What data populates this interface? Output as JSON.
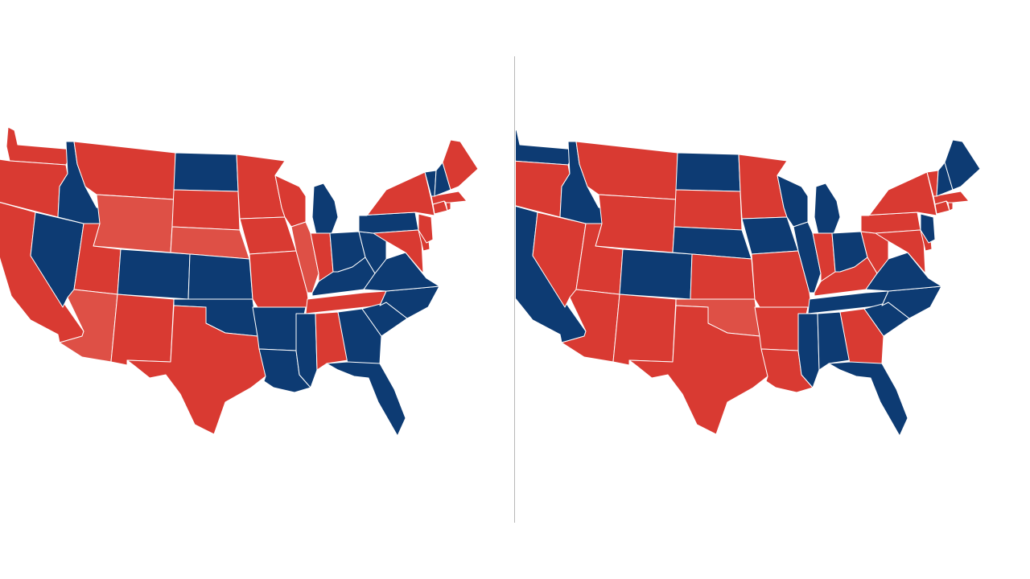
{
  "colors": {
    "red": "#d93a32",
    "light_red": "#de5046",
    "blue": "#0d3b73",
    "divider": "#b8b8b8",
    "background": "#ffffff"
  },
  "maps": [
    {
      "name": "left-map",
      "states": {
        "WA": "red",
        "OR": "red",
        "CA": "red",
        "NV": "blue",
        "ID": "blue",
        "MT": "red",
        "WY": "light_red",
        "UT": "red",
        "AZ": "light_red",
        "CO": "blue",
        "NM": "red",
        "ND": "blue",
        "SD": "red",
        "NE": "light_red",
        "KS": "blue",
        "OK": "blue",
        "TX": "red",
        "MN": "red",
        "IA": "red",
        "MO": "red",
        "AR": "blue",
        "LA": "blue",
        "WI": "red",
        "IL": "light_red",
        "MI": "blue",
        "IN": "red",
        "OH": "blue",
        "KY": "blue",
        "TN": "red",
        "MS": "blue",
        "AL": "red",
        "GA": "blue",
        "FL": "blue",
        "SC": "blue",
        "NC": "blue",
        "VA": "blue",
        "WV": "blue",
        "PA": "blue",
        "NY": "red",
        "MD": "red",
        "DE": "red",
        "NJ": "red",
        "CT": "red",
        "RI": "red",
        "MA": "red",
        "VT": "blue",
        "NH": "blue",
        "ME": "red"
      }
    },
    {
      "name": "right-map",
      "states": {
        "WA": "blue",
        "OR": "red",
        "CA": "blue",
        "NV": "red",
        "ID": "blue",
        "MT": "red",
        "WY": "red",
        "UT": "red",
        "AZ": "red",
        "CO": "blue",
        "NM": "red",
        "ND": "blue",
        "SD": "red",
        "NE": "blue",
        "KS": "red",
        "OK": "light_red",
        "TX": "red",
        "MN": "red",
        "IA": "blue",
        "MO": "red",
        "AR": "red",
        "LA": "red",
        "WI": "blue",
        "IL": "blue",
        "MI": "blue",
        "IN": "red",
        "OH": "blue",
        "KY": "red",
        "TN": "blue",
        "MS": "blue",
        "AL": "blue",
        "GA": "red",
        "FL": "blue",
        "SC": "blue",
        "NC": "blue",
        "VA": "blue",
        "WV": "red",
        "PA": "red",
        "NY": "red",
        "MD": "red",
        "DE": "red",
        "NJ": "blue",
        "CT": "red",
        "RI": "red",
        "MA": "red",
        "VT": "red",
        "NH": "blue",
        "ME": "blue"
      }
    }
  ]
}
